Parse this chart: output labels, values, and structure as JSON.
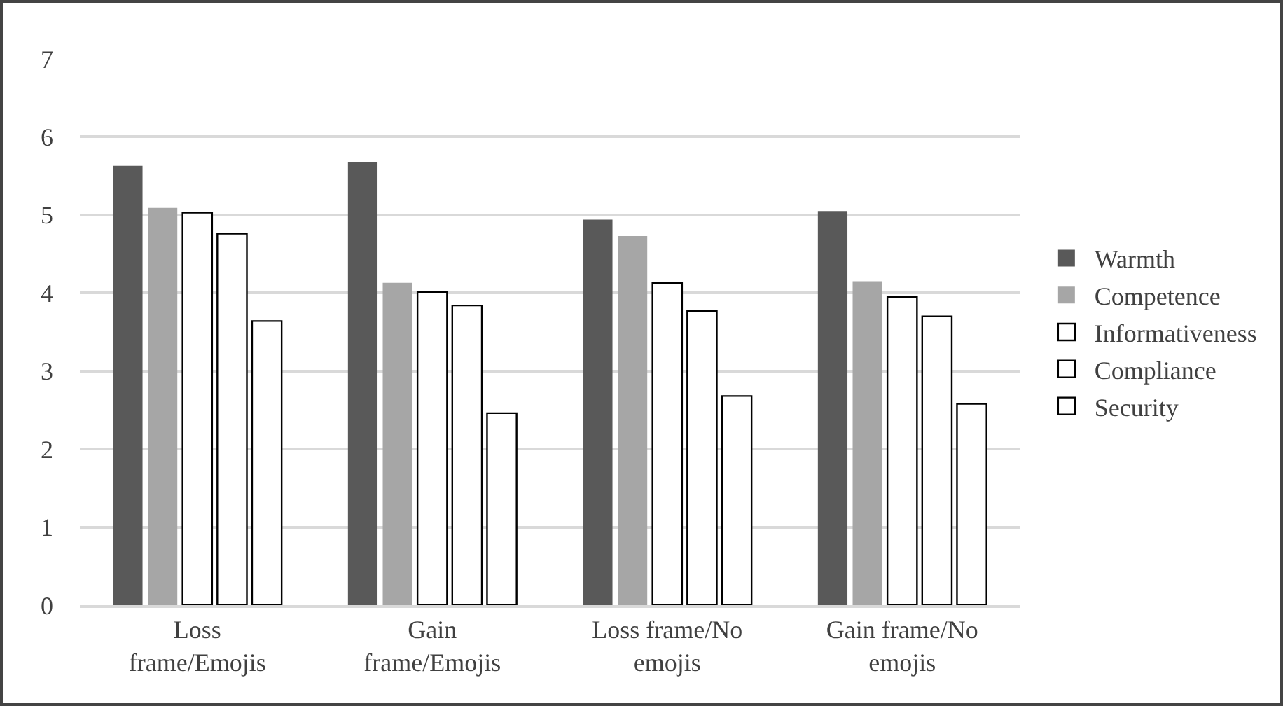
{
  "chart_data": {
    "type": "bar",
    "categories": [
      "Loss frame/Emojis",
      "Gain frame/Emojis",
      "Loss frame/No emojis",
      "Gain frame/No emojis"
    ],
    "series": [
      {
        "name": "Warmth",
        "color": "#595959",
        "values": [
          5.63,
          5.68,
          4.94,
          5.05
        ]
      },
      {
        "name": "Competence",
        "color": "#a6a6a6",
        "values": [
          5.09,
          4.13,
          4.73,
          4.15
        ]
      },
      {
        "name": "Informativeness",
        "color": "#ffffff",
        "values": [
          5.03,
          4.01,
          4.13,
          3.95
        ]
      },
      {
        "name": "Compliance",
        "color": "#ffffff",
        "values": [
          4.76,
          3.84,
          3.77,
          3.7
        ]
      },
      {
        "name": "Security",
        "color": "#ffffff",
        "values": [
          3.64,
          2.46,
          2.68,
          2.58
        ]
      }
    ],
    "ylim": [
      0,
      7
    ],
    "yticks": [
      0,
      1,
      2,
      3,
      4,
      5,
      6,
      7
    ],
    "grid": "y",
    "legend": "right"
  }
}
